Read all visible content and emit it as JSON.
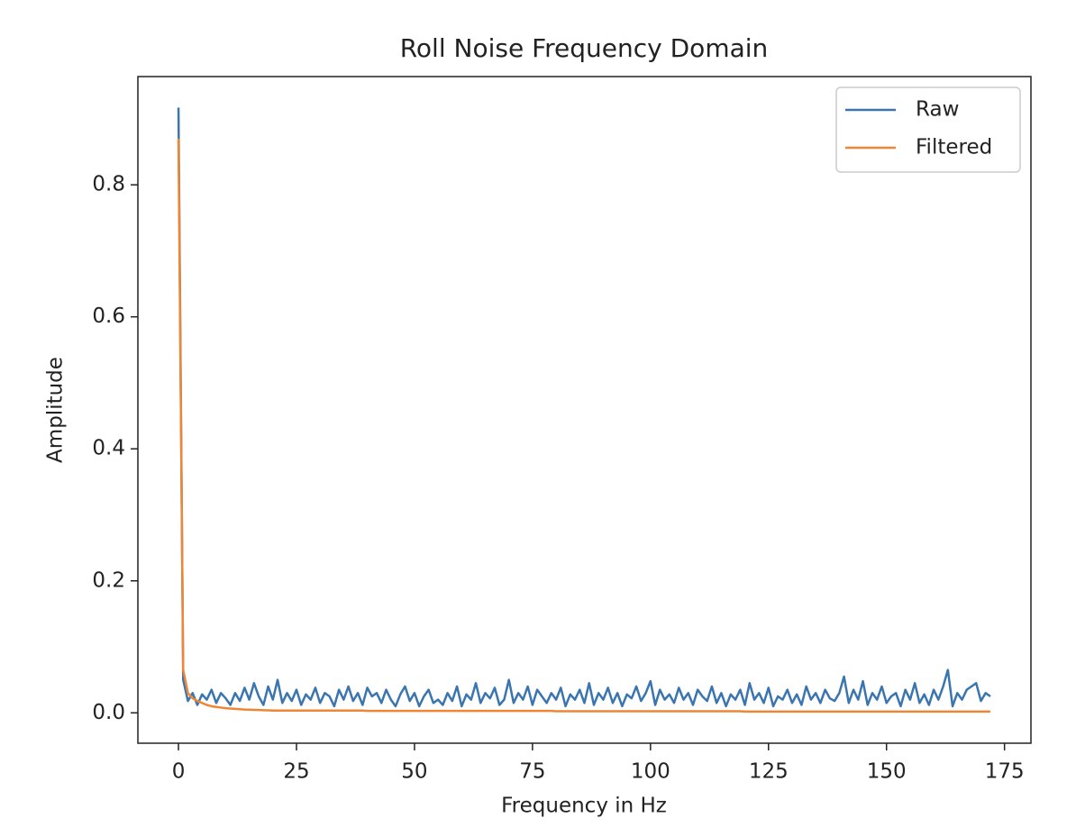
{
  "chart_data": {
    "type": "line",
    "title": "Roll Noise Frequency Domain",
    "x_label": "Frequency in Hz",
    "y_label": "Amplitude",
    "x": [
      0,
      1,
      2,
      3,
      4,
      5,
      6,
      7,
      8,
      9,
      10,
      11,
      12,
      13,
      14,
      15,
      16,
      17,
      18,
      19,
      20,
      21,
      22,
      23,
      24,
      25,
      26,
      27,
      28,
      29,
      30,
      31,
      32,
      33,
      34,
      35,
      36,
      37,
      38,
      39,
      40,
      41,
      42,
      43,
      44,
      45,
      46,
      47,
      48,
      49,
      50,
      51,
      52,
      53,
      54,
      55,
      56,
      57,
      58,
      59,
      60,
      61,
      62,
      63,
      64,
      65,
      66,
      67,
      68,
      69,
      70,
      71,
      72,
      73,
      74,
      75,
      76,
      77,
      78,
      79,
      80,
      81,
      82,
      83,
      84,
      85,
      86,
      87,
      88,
      89,
      90,
      91,
      92,
      93,
      94,
      95,
      96,
      97,
      98,
      99,
      100,
      101,
      102,
      103,
      104,
      105,
      106,
      107,
      108,
      109,
      110,
      111,
      112,
      113,
      114,
      115,
      116,
      117,
      118,
      119,
      120,
      121,
      122,
      123,
      124,
      125,
      126,
      127,
      128,
      129,
      130,
      131,
      132,
      133,
      134,
      135,
      136,
      137,
      138,
      139,
      140,
      141,
      142,
      143,
      144,
      145,
      146,
      147,
      148,
      149,
      150,
      151,
      152,
      153,
      154,
      155,
      156,
      157,
      158,
      159,
      160,
      161,
      162,
      163,
      164,
      165,
      166,
      167,
      168,
      169,
      170,
      171,
      172
    ],
    "series": [
      {
        "name": "Raw",
        "color": "#3a75b0",
        "values": [
          0.917,
          0.05,
          0.018,
          0.03,
          0.012,
          0.028,
          0.02,
          0.035,
          0.015,
          0.03,
          0.022,
          0.012,
          0.03,
          0.018,
          0.038,
          0.02,
          0.045,
          0.025,
          0.012,
          0.04,
          0.02,
          0.05,
          0.015,
          0.03,
          0.018,
          0.035,
          0.012,
          0.028,
          0.02,
          0.038,
          0.015,
          0.03,
          0.025,
          0.01,
          0.035,
          0.02,
          0.04,
          0.018,
          0.03,
          0.012,
          0.038,
          0.025,
          0.03,
          0.015,
          0.035,
          0.02,
          0.01,
          0.028,
          0.04,
          0.018,
          0.03,
          0.01,
          0.025,
          0.035,
          0.015,
          0.02,
          0.012,
          0.03,
          0.018,
          0.04,
          0.01,
          0.028,
          0.02,
          0.045,
          0.015,
          0.03,
          0.022,
          0.038,
          0.012,
          0.02,
          0.05,
          0.015,
          0.03,
          0.02,
          0.04,
          0.012,
          0.035,
          0.025,
          0.015,
          0.03,
          0.02,
          0.038,
          0.01,
          0.028,
          0.02,
          0.035,
          0.015,
          0.045,
          0.012,
          0.03,
          0.02,
          0.038,
          0.015,
          0.03,
          0.01,
          0.028,
          0.022,
          0.04,
          0.018,
          0.03,
          0.048,
          0.012,
          0.035,
          0.02,
          0.028,
          0.015,
          0.038,
          0.02,
          0.03,
          0.012,
          0.035,
          0.025,
          0.018,
          0.04,
          0.015,
          0.03,
          0.01,
          0.028,
          0.02,
          0.035,
          0.012,
          0.045,
          0.02,
          0.03,
          0.015,
          0.038,
          0.01,
          0.025,
          0.02,
          0.035,
          0.015,
          0.028,
          0.012,
          0.04,
          0.02,
          0.03,
          0.015,
          0.035,
          0.022,
          0.018,
          0.03,
          0.055,
          0.015,
          0.035,
          0.02,
          0.048,
          0.012,
          0.03,
          0.02,
          0.04,
          0.015,
          0.025,
          0.03,
          0.01,
          0.035,
          0.02,
          0.045,
          0.015,
          0.028,
          0.012,
          0.035,
          0.02,
          0.04,
          0.065,
          0.01,
          0.03,
          0.02,
          0.035,
          0.04,
          0.045,
          0.018,
          0.03,
          0.025
        ]
      },
      {
        "name": "Filtered",
        "color": "#ef8636",
        "values": [
          0.87,
          0.065,
          0.03,
          0.022,
          0.018,
          0.015,
          0.012,
          0.01,
          0.009,
          0.008,
          0.007,
          0.0065,
          0.006,
          0.0055,
          0.005,
          0.0048,
          0.0045,
          0.0043,
          0.004,
          0.0038,
          0.0035,
          0.0035,
          0.0035,
          0.0035,
          0.0035,
          0.0035,
          0.0035,
          0.0035,
          0.0035,
          0.0035,
          0.0035,
          0.0035,
          0.0035,
          0.0035,
          0.0035,
          0.0035,
          0.0035,
          0.0035,
          0.0035,
          0.0035,
          0.003,
          0.003,
          0.003,
          0.003,
          0.003,
          0.003,
          0.003,
          0.003,
          0.003,
          0.003,
          0.003,
          0.003,
          0.003,
          0.003,
          0.003,
          0.003,
          0.003,
          0.003,
          0.003,
          0.003,
          0.003,
          0.003,
          0.003,
          0.003,
          0.003,
          0.003,
          0.003,
          0.003,
          0.003,
          0.003,
          0.003,
          0.003,
          0.003,
          0.003,
          0.003,
          0.003,
          0.003,
          0.003,
          0.003,
          0.003,
          0.0025,
          0.0025,
          0.0025,
          0.0025,
          0.0025,
          0.0025,
          0.0025,
          0.0025,
          0.0025,
          0.0025,
          0.0025,
          0.0025,
          0.0025,
          0.0025,
          0.0025,
          0.0025,
          0.0025,
          0.0025,
          0.0025,
          0.0025,
          0.0025,
          0.0025,
          0.0025,
          0.0025,
          0.0025,
          0.0025,
          0.0025,
          0.0025,
          0.0025,
          0.0025,
          0.0025,
          0.0025,
          0.0025,
          0.0025,
          0.0025,
          0.0025,
          0.0025,
          0.0025,
          0.0025,
          0.0025,
          0.002,
          0.002,
          0.002,
          0.002,
          0.002,
          0.002,
          0.002,
          0.002,
          0.002,
          0.002,
          0.002,
          0.002,
          0.002,
          0.002,
          0.002,
          0.002,
          0.002,
          0.002,
          0.002,
          0.002,
          0.002,
          0.002,
          0.002,
          0.002,
          0.002,
          0.002,
          0.002,
          0.002,
          0.002,
          0.002,
          0.002,
          0.002,
          0.002,
          0.002,
          0.002,
          0.002,
          0.002,
          0.002,
          0.002,
          0.002,
          0.002,
          0.002,
          0.002,
          0.002,
          0.002,
          0.002,
          0.002,
          0.002,
          0.002,
          0.002,
          0.002,
          0.002,
          0.002
        ]
      }
    ],
    "xlim": [
      -8.6,
      180.6
    ],
    "ylim": [
      -0.046,
      0.964
    ],
    "xticks": [
      0,
      25,
      50,
      75,
      100,
      125,
      150,
      175
    ],
    "yticks": [
      {
        "value": 0,
        "label": "0.0"
      },
      0.2,
      0.4,
      0.6,
      0.8
    ],
    "legend": "upper right"
  }
}
